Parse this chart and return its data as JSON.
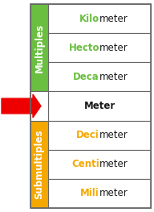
{
  "fig_width": 1.92,
  "fig_height": 2.63,
  "dpi": 100,
  "multiples_label": "Multiples",
  "multiples_bg": "#6abf40",
  "submultiples_label": "Submultiples",
  "submultiples_bg": "#f5a800",
  "rows": [
    {
      "prefix": "Kilo",
      "suffix": "meter",
      "prefix_color": "#6abf40",
      "suffix_color": "#1a1a1a",
      "group": "multiples"
    },
    {
      "prefix": "Hecto",
      "suffix": "meter",
      "prefix_color": "#6abf40",
      "suffix_color": "#1a1a1a",
      "group": "multiples"
    },
    {
      "prefix": "Deca",
      "suffix": "meter",
      "prefix_color": "#6abf40",
      "suffix_color": "#1a1a1a",
      "group": "multiples"
    },
    {
      "prefix": "Meter",
      "suffix": "",
      "prefix_color": "#1a1a1a",
      "suffix_color": "#1a1a1a",
      "group": "meter"
    },
    {
      "prefix": "Deci",
      "suffix": "meter",
      "prefix_color": "#f5a800",
      "suffix_color": "#1a1a1a",
      "group": "submultiples"
    },
    {
      "prefix": "Centi",
      "suffix": "meter",
      "prefix_color": "#f5a800",
      "suffix_color": "#1a1a1a",
      "group": "submultiples"
    },
    {
      "prefix": "Mili",
      "suffix": "meter",
      "prefix_color": "#f5a800",
      "suffix_color": "#1a1a1a",
      "group": "submultiples"
    }
  ],
  "border_color": "#666666",
  "arrow_color": "#ee0000",
  "bg_color": "#ffffff",
  "font_size": 8.5,
  "label_font_size": 8.5
}
